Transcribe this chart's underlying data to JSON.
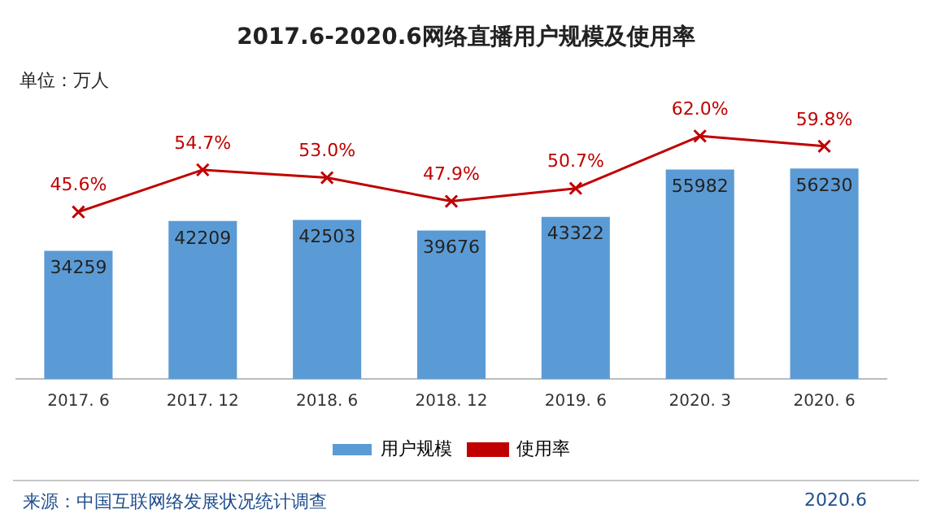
{
  "chart_data": {
    "type": "bar",
    "title": "2017.6-2020.6网络直播用户规模及使用率",
    "annotations": [
      "单位：万人",
      "来源：中国互联网络发展状况统计调查",
      "2020.6"
    ],
    "categories": [
      "2017. 6",
      "2017. 12",
      "2018. 6",
      "2018. 12",
      "2019. 6",
      "2020. 3",
      "2020. 6"
    ],
    "series": [
      {
        "name": "用户规模",
        "color": "#5b9bd5",
        "values": [
          34259,
          42209,
          42503,
          39676,
          43322,
          55982,
          56230
        ],
        "value_labels": [
          "34259",
          "42209",
          "42503",
          "39676",
          "43322",
          "55982",
          "56230"
        ]
      },
      {
        "name": "使用率",
        "type": "line",
        "axis": "y2",
        "color": "#c00000",
        "marker": "cross",
        "values": [
          45.6,
          54.7,
          53.0,
          47.9,
          50.7,
          62.0,
          59.8
        ],
        "value_labels": [
          "45.6%",
          "54.7%",
          "53.0%",
          "47.9%",
          "50.7%",
          "62.0%",
          "59.8%"
        ]
      }
    ],
    "legend": "bottom",
    "grid": false
  }
}
